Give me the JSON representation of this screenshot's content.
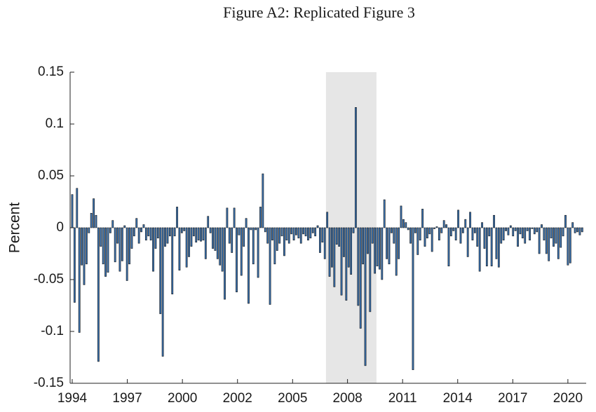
{
  "chart_data": {
    "type": "bar",
    "title": "Figure A2: Replicated Figure 3",
    "ylabel": "Percent",
    "color": "#3b74b3",
    "shade_color": "#e6e6e6",
    "shaded_region": [
      2007.31,
      2009.96
    ],
    "xlim": [
      1993.89,
      2020.96
    ],
    "xticks": [
      {
        "value": 1994,
        "label": "1994"
      },
      {
        "value": 1996.89,
        "label": "1997"
      },
      {
        "value": 1999.78,
        "label": "2000"
      },
      {
        "value": 2002.67,
        "label": "2002"
      },
      {
        "value": 2005.56,
        "label": "2005"
      },
      {
        "value": 2008.44,
        "label": "2008"
      },
      {
        "value": 2011.33,
        "label": "2011"
      },
      {
        "value": 2014.22,
        "label": "2014"
      },
      {
        "value": 2017.11,
        "label": "2017"
      },
      {
        "value": 2020,
        "label": "2020"
      }
    ],
    "ylim": [
      -0.15,
      0.15
    ],
    "yticks": [
      0.15,
      0.1,
      0.05,
      0,
      -0.05,
      -0.1,
      -0.15
    ],
    "x": [
      1994,
      1994.125,
      1994.25,
      1994.375,
      1994.5,
      1994.625,
      1994.75,
      1994.875,
      1995,
      1995.125,
      1995.25,
      1995.375,
      1995.5,
      1995.625,
      1995.75,
      1995.875,
      1996,
      1996.125,
      1996.25,
      1996.375,
      1996.5,
      1996.625,
      1996.75,
      1996.875,
      1997,
      1997.125,
      1997.25,
      1997.375,
      1997.5,
      1997.625,
      1997.75,
      1997.875,
      1998,
      1998.125,
      1998.25,
      1998.375,
      1998.5,
      1998.625,
      1998.75,
      1998.875,
      1999,
      1999.125,
      1999.25,
      1999.375,
      1999.5,
      1999.625,
      1999.75,
      1999.875,
      2000,
      2000.125,
      2000.25,
      2000.375,
      2000.5,
      2000.625,
      2000.75,
      2000.875,
      2001,
      2001.125,
      2001.25,
      2001.375,
      2001.5,
      2001.625,
      2001.75,
      2001.875,
      2002,
      2002.125,
      2002.25,
      2002.375,
      2002.5,
      2002.625,
      2002.75,
      2002.875,
      2003,
      2003.125,
      2003.25,
      2003.375,
      2003.5,
      2003.625,
      2003.75,
      2003.875,
      2004,
      2004.125,
      2004.25,
      2004.375,
      2004.5,
      2004.625,
      2004.75,
      2004.875,
      2005,
      2005.125,
      2005.25,
      2005.375,
      2005.5,
      2005.625,
      2005.75,
      2005.875,
      2006,
      2006.125,
      2006.25,
      2006.375,
      2006.5,
      2006.625,
      2006.75,
      2006.875,
      2007,
      2007.125,
      2007.25,
      2007.375,
      2007.5,
      2007.625,
      2007.75,
      2007.875,
      2008,
      2008.125,
      2008.25,
      2008.375,
      2008.5,
      2008.625,
      2008.75,
      2008.875,
      2009,
      2009.125,
      2009.25,
      2009.375,
      2009.5,
      2009.625,
      2009.75,
      2009.875,
      2010,
      2010.125,
      2010.25,
      2010.375,
      2010.5,
      2010.625,
      2010.75,
      2010.875,
      2011,
      2011.125,
      2011.25,
      2011.375,
      2011.5,
      2011.625,
      2011.75,
      2011.875,
      2012,
      2012.125,
      2012.25,
      2012.375,
      2012.5,
      2012.625,
      2012.75,
      2012.875,
      2013,
      2013.125,
      2013.25,
      2013.375,
      2013.5,
      2013.625,
      2013.75,
      2013.875,
      2014,
      2014.125,
      2014.25,
      2014.375,
      2014.5,
      2014.625,
      2014.75,
      2014.875,
      2015,
      2015.125,
      2015.25,
      2015.375,
      2015.5,
      2015.625,
      2015.75,
      2015.875,
      2016,
      2016.125,
      2016.25,
      2016.375,
      2016.5,
      2016.625,
      2016.75,
      2016.875,
      2017,
      2017.125,
      2017.25,
      2017.375,
      2017.5,
      2017.625,
      2017.75,
      2017.875,
      2018,
      2018.125,
      2018.25,
      2018.375,
      2018.5,
      2018.625,
      2018.75,
      2018.875,
      2019,
      2019.125,
      2019.25,
      2019.375,
      2019.5,
      2019.625,
      2019.75,
      2019.875,
      2020,
      2020.125,
      2020.25,
      2020.375,
      2020.5,
      2020.625,
      2020.75
    ],
    "values": [
      0.032,
      -0.072,
      0.038,
      -0.101,
      -0.036,
      -0.055,
      -0.035,
      -0.005,
      0.014,
      0.028,
      0.012,
      -0.129,
      -0.018,
      -0.035,
      -0.047,
      -0.043,
      -0.005,
      0.007,
      -0.033,
      -0.015,
      -0.042,
      -0.032,
      0.002,
      -0.051,
      -0.035,
      -0.02,
      -0.008,
      0.009,
      -0.015,
      -0.004,
      0.003,
      -0.012,
      -0.008,
      -0.012,
      -0.042,
      -0.02,
      -0.01,
      -0.083,
      -0.124,
      -0.018,
      -0.015,
      -0.008,
      -0.064,
      -0.008,
      0.02,
      -0.041,
      -0.005,
      -0.003,
      -0.038,
      -0.028,
      -0.018,
      -0.008,
      -0.014,
      -0.012,
      -0.013,
      -0.012,
      -0.03,
      0.011,
      -0.005,
      -0.02,
      -0.022,
      -0.03,
      -0.036,
      -0.042,
      -0.069,
      0.019,
      -0.015,
      -0.024,
      0.019,
      -0.062,
      -0.007,
      -0.046,
      -0.018,
      0.009,
      -0.073,
      -0.002,
      -0.035,
      -0.002,
      -0.048,
      0.02,
      0.052,
      -0.004,
      -0.015,
      -0.074,
      -0.012,
      -0.035,
      -0.022,
      -0.015,
      -0.008,
      -0.027,
      -0.012,
      -0.015,
      -0.006,
      -0.012,
      -0.007,
      -0.01,
      -0.015,
      -0.006,
      -0.008,
      -0.012,
      -0.01,
      -0.005,
      -0.008,
      0.002,
      -0.024,
      -0.014,
      -0.03,
      0.015,
      -0.047,
      -0.038,
      -0.057,
      -0.016,
      -0.018,
      -0.065,
      -0.028,
      -0.07,
      -0.038,
      -0.045,
      -0.005,
      0.116,
      -0.075,
      -0.097,
      -0.035,
      -0.133,
      -0.025,
      -0.081,
      -0.015,
      -0.044,
      -0.037,
      -0.04,
      -0.05,
      0.027,
      -0.03,
      -0.035,
      -0.005,
      -0.015,
      -0.046,
      -0.03,
      0.021,
      0.008,
      0.005,
      -0.002,
      -0.015,
      -0.137,
      -0.005,
      -0.026,
      -0.012,
      0.018,
      -0.018,
      -0.01,
      -0.006,
      -0.023,
      -0.001,
      0.001,
      -0.012,
      -0.005,
      0.007,
      0.003,
      -0.037,
      -0.008,
      -0.003,
      -0.012,
      0.017,
      -0.015,
      -0.005,
      0.008,
      -0.028,
      0.015,
      -0.012,
      -0.005,
      -0.018,
      -0.042,
      0.005,
      -0.02,
      -0.037,
      -0.008,
      -0.037,
      0.012,
      -0.03,
      -0.038,
      -0.015,
      -0.012,
      -0.003,
      -0.007,
      0.002,
      -0.008,
      -0.003,
      -0.018,
      -0.006,
      -0.01,
      -0.015,
      -0.003,
      -0.012,
      -0.001,
      -0.006,
      -0.004,
      -0.025,
      0.003,
      -0.012,
      -0.025,
      -0.032,
      -0.01,
      -0.018,
      -0.015,
      -0.03,
      -0.019,
      -0.008,
      0.012,
      -0.036,
      -0.034,
      0.005,
      -0.005,
      -0.004,
      -0.007,
      -0.004
    ]
  }
}
